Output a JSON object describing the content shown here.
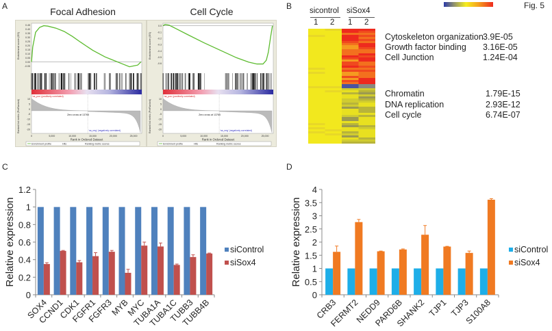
{
  "figure_label": "Fig. 5",
  "panels": {
    "a": "A",
    "b": "B",
    "c": "C",
    "d": "D"
  },
  "panel_a": {
    "titles": [
      "Focal Adhesion",
      "Cell Cycle"
    ],
    "es_axis_label": "Enrichment score (ES)",
    "rank_axis_label": "Ranked list metric (PreRanked)",
    "x_axis_label": "Rank in Ordered Dataset",
    "pos_label": "'na_pos' (positively correlated)",
    "neg_label": "'na_neg' (negatively correlated)",
    "zero_cross": "Zero cross at 13765",
    "legend": [
      "Enrichment profile",
      "Hits",
      "Ranking metric scores"
    ]
  },
  "panel_b": {
    "groups": [
      "sicontrol",
      "siSox4"
    ],
    "replicates": [
      "1",
      "2",
      "1",
      "2"
    ],
    "colorscale": [
      "#2b3aa8",
      "#f5ee1e",
      "#ee2a1e"
    ],
    "up_terms": [
      {
        "term": "Cytoskeleton organization",
        "p": "3.9E-05"
      },
      {
        "term": "Growth factor binding",
        "p": "3.16E-05"
      },
      {
        "term": "Cell Junction",
        "p": "1.24E-04"
      }
    ],
    "down_terms": [
      {
        "term": "Chromatin",
        "p": "1.79E-15"
      },
      {
        "term": "DNA replication",
        "p": "2.93E-12"
      },
      {
        "term": "Cell cycle",
        "p": "6.74E-07"
      }
    ]
  },
  "chart_data": [
    {
      "type": "line",
      "title": "Focal Adhesion",
      "xlabel": "Rank in Ordered Dataset",
      "ylabel": "Enrichment score (ES)",
      "xlim": [
        0,
        27000
      ],
      "ylim": [
        -0.08,
        0.47
      ],
      "x_ticks": [
        "0",
        "5,000",
        "10,000",
        "15,000",
        "20,000",
        "25,000"
      ],
      "y_ticks": [
        "0.45",
        "0.40",
        "0.35",
        "0.30",
        "0.25",
        "0.20",
        "0.15",
        "0.10",
        "0.05",
        "0.00",
        "-0.05"
      ],
      "y_tick_values": [
        0.45,
        0.4,
        0.35,
        0.3,
        0.25,
        0.2,
        0.15,
        0.1,
        0.05,
        0,
        -0.05
      ],
      "x": [
        0,
        300,
        1000,
        2000,
        3000,
        4000,
        6000,
        8000,
        10000,
        12000,
        15000,
        18000,
        20000,
        22000,
        24000,
        25000,
        26000,
        26800
      ],
      "y": [
        0,
        0.18,
        0.36,
        0.42,
        0.44,
        0.435,
        0.41,
        0.37,
        0.31,
        0.24,
        0.14,
        0.06,
        0.02,
        -0.02,
        -0.06,
        -0.05,
        -0.04,
        0
      ],
      "rank_ticks": [
        "10",
        "5",
        "0",
        "-5",
        "-10",
        "-15",
        "-20"
      ],
      "color": "#5cbb2e"
    },
    {
      "type": "line",
      "title": "Cell Cycle",
      "xlabel": "Rank in Ordered Dataset",
      "ylabel": "Enrichment score (ES)",
      "xlim": [
        0,
        27000
      ],
      "ylim": [
        -0.68,
        0.04
      ],
      "x_ticks": [
        "0",
        "5,000",
        "10,000",
        "15,000",
        "20,000",
        "25,000"
      ],
      "y_ticks": [
        "0.0",
        "-0.1",
        "-0.2",
        "-0.3",
        "-0.4",
        "-0.5",
        "-0.6"
      ],
      "y_tick_values": [
        0,
        -0.1,
        -0.2,
        -0.3,
        -0.4,
        -0.5,
        -0.6
      ],
      "x": [
        0,
        500,
        1500,
        3000,
        6000,
        10000,
        14000,
        18000,
        21000,
        23000,
        24500,
        25300,
        25800,
        26300,
        26800
      ],
      "y": [
        0,
        0.02,
        0.01,
        -0.04,
        -0.14,
        -0.27,
        -0.39,
        -0.51,
        -0.58,
        -0.61,
        -0.61,
        -0.55,
        -0.42,
        -0.2,
        0
      ],
      "rank_ticks": [
        "10",
        "5",
        "0",
        "-5",
        "-10",
        "-15",
        "-20"
      ],
      "color": "#5cbb2e"
    },
    {
      "type": "bar",
      "ylabel": "Relative expression",
      "ylim": [
        0,
        1.2
      ],
      "y_ticks": [
        "0",
        "0.2",
        "0.4",
        "0.6",
        "0.8",
        "1",
        "1.2"
      ],
      "categories": [
        "SOX4",
        "CCND1",
        "CDK1",
        "FGFR1",
        "FGFR3",
        "MYB",
        "MYC",
        "TUBA1A",
        "TUBA1C",
        "TUBB3",
        "TUBB4B"
      ],
      "legend": "right",
      "series": [
        {
          "name": "siControl",
          "color": "#4f81bd",
          "values": [
            1,
            1,
            1,
            1,
            1,
            1,
            1,
            1,
            1,
            1,
            1
          ]
        },
        {
          "name": "siSox4",
          "color": "#c0504d",
          "values": [
            0.35,
            0.5,
            0.37,
            0.44,
            0.49,
            0.25,
            0.56,
            0.55,
            0.34,
            0.43,
            0.47
          ],
          "errors": [
            0.015,
            0.005,
            0.02,
            0.04,
            0.015,
            0.04,
            0.04,
            0.04,
            0.01,
            0.025,
            0.005
          ]
        }
      ]
    },
    {
      "type": "bar",
      "ylabel": "Relative expression",
      "ylim": [
        0,
        4
      ],
      "y_ticks": [
        "0",
        "0.5",
        "1",
        "1.5",
        "2",
        "2.5",
        "3",
        "3.5",
        "4"
      ],
      "categories": [
        "CRB3",
        "FERMT2",
        "NEDD9",
        "PARD6B",
        "SHANK2",
        "TJP1",
        "TJP3",
        "S100A8"
      ],
      "legend": "right",
      "series": [
        {
          "name": "siControl",
          "color": "#1eaee8",
          "values": [
            1,
            1,
            1,
            1,
            1,
            1,
            1,
            1
          ]
        },
        {
          "name": "siSox4",
          "color": "#f07a22",
          "values": [
            1.63,
            2.76,
            1.65,
            1.72,
            2.28,
            1.83,
            1.59,
            3.61
          ],
          "errors": [
            0.22,
            0.1,
            0.01,
            0.02,
            0.35,
            0.01,
            0.07,
            0.04
          ]
        }
      ]
    }
  ]
}
